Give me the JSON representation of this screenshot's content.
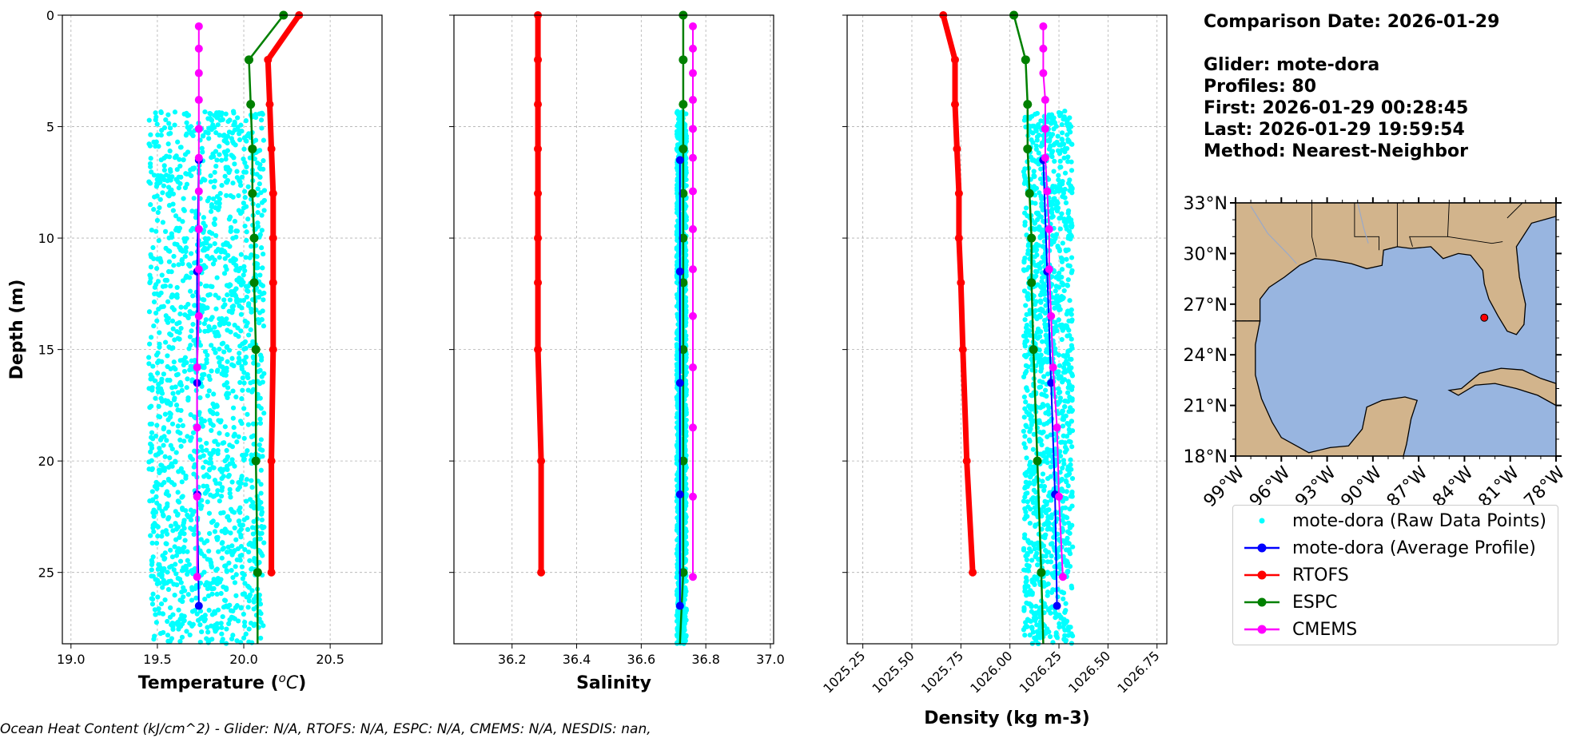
{
  "info": {
    "comparison_date": "Comparison Date: 2026-01-29",
    "glider": "Glider: mote-dora",
    "profiles": "Profiles: 80",
    "first": "First: 2026-01-29 00:28:45",
    "last": "Last: 2026-01-29 19:59:54",
    "method": "Method: Nearest-Neighbor"
  },
  "footer_text": "Ocean Heat Content (kJ/cm^2) - Glider: N/A,  RTOFS: N/A,  ESPC: N/A,  CMEMS: N/A,  NESDIS: nan,",
  "legend": [
    {
      "label": "mote-dora (Raw Data Points)",
      "color": "#00ffff",
      "style": "dot"
    },
    {
      "label": "mote-dora (Average Profile)",
      "color": "#0000ff",
      "style": "line-marker"
    },
    {
      "label": "RTOFS",
      "color": "#ff0000",
      "style": "line-marker"
    },
    {
      "label": "ESPC",
      "color": "#008000",
      "style": "line-marker"
    },
    {
      "label": "CMEMS",
      "color": "#ff00ff",
      "style": "line-marker"
    }
  ],
  "colors": {
    "raw": "#00ffff",
    "glider": "#0000ff",
    "rtofs": "#ff0000",
    "espc": "#008000",
    "cmems": "#ff00ff",
    "land": "#d2b48c",
    "ocean": "#98b5e0"
  },
  "chart_data": [
    {
      "type": "line",
      "title": "",
      "xlabel": "Temperature (°C)",
      "ylabel": "Depth (m)",
      "xlim": [
        18.95,
        20.8
      ],
      "ylim": [
        28.2,
        0
      ],
      "xticks": [
        "19.0",
        "19.5",
        "20.0",
        "20.5"
      ],
      "xtick_values": [
        19.0,
        19.5,
        20.0,
        20.5
      ],
      "yticks": [
        "0",
        "5",
        "10",
        "15",
        "20",
        "25"
      ],
      "ytick_values": [
        0,
        5,
        10,
        15,
        20,
        25
      ],
      "raw_range": {
        "x": [
          19.45,
          20.12
        ],
        "depth": [
          4.3,
          28.2
        ]
      },
      "series": [
        {
          "name": "mote-dora (Average Profile)",
          "key": "glider",
          "depth": [
            6.5,
            11.5,
            16.5,
            21.5,
            26.5
          ],
          "values": [
            19.74,
            19.73,
            19.73,
            19.73,
            19.74
          ]
        },
        {
          "name": "RTOFS",
          "key": "rtofs",
          "depth": [
            0,
            2,
            4,
            6,
            8,
            10,
            12,
            15,
            20,
            25
          ],
          "values": [
            20.32,
            20.14,
            20.15,
            20.16,
            20.17,
            20.17,
            20.17,
            20.17,
            20.16,
            20.16
          ]
        },
        {
          "name": "ESPC",
          "key": "espc",
          "depth": [
            0,
            2,
            4,
            6,
            8,
            10,
            12,
            15,
            20,
            25,
            28.2
          ],
          "values": [
            20.23,
            20.03,
            20.04,
            20.05,
            20.05,
            20.06,
            20.06,
            20.07,
            20.07,
            20.08,
            20.08
          ]
        },
        {
          "name": "CMEMS",
          "key": "cmems",
          "depth": [
            0.5,
            1.5,
            2.6,
            3.8,
            5.1,
            6.4,
            7.9,
            9.6,
            11.4,
            13.5,
            15.8,
            18.5,
            21.6,
            25.2
          ],
          "values": [
            19.74,
            19.74,
            19.74,
            19.74,
            19.74,
            19.74,
            19.74,
            19.74,
            19.74,
            19.74,
            19.73,
            19.73,
            19.73,
            19.73
          ]
        }
      ]
    },
    {
      "type": "line",
      "title": "",
      "xlabel": "Salinity",
      "ylabel": "",
      "xlim": [
        36.02,
        37.01
      ],
      "ylim": [
        28.2,
        0
      ],
      "xticks": [
        "36.2",
        "36.4",
        "36.6",
        "36.8",
        "37.0"
      ],
      "xtick_values": [
        36.2,
        36.4,
        36.6,
        36.8,
        37.0
      ],
      "yticks": [],
      "ytick_values": [
        0,
        5,
        10,
        15,
        20,
        25
      ],
      "raw_range": {
        "x": [
          36.71,
          36.74
        ],
        "depth": [
          4.3,
          28.2
        ]
      },
      "series": [
        {
          "name": "mote-dora (Average Profile)",
          "key": "glider",
          "depth": [
            6.5,
            11.5,
            16.5,
            21.5,
            26.5
          ],
          "values": [
            36.72,
            36.72,
            36.72,
            36.72,
            36.72
          ]
        },
        {
          "name": "RTOFS",
          "key": "rtofs",
          "depth": [
            0,
            2,
            4,
            6,
            8,
            10,
            12,
            15,
            20,
            25
          ],
          "values": [
            36.28,
            36.28,
            36.28,
            36.28,
            36.28,
            36.28,
            36.28,
            36.28,
            36.29,
            36.29
          ]
        },
        {
          "name": "ESPC",
          "key": "espc",
          "depth": [
            0,
            2,
            4,
            6,
            8,
            10,
            12,
            15,
            20,
            25,
            28.2
          ],
          "values": [
            36.73,
            36.73,
            36.73,
            36.73,
            36.73,
            36.73,
            36.73,
            36.73,
            36.73,
            36.73,
            36.72
          ]
        },
        {
          "name": "CMEMS",
          "key": "cmems",
          "depth": [
            0.5,
            1.5,
            2.6,
            3.8,
            5.1,
            6.4,
            7.9,
            9.6,
            11.4,
            13.5,
            15.8,
            18.5,
            21.6,
            25.2
          ],
          "values": [
            36.76,
            36.76,
            36.76,
            36.76,
            36.76,
            36.76,
            36.76,
            36.76,
            36.76,
            36.76,
            36.76,
            36.76,
            36.76,
            36.76
          ]
        }
      ]
    },
    {
      "type": "line",
      "title": "",
      "xlabel": "Density (kg m-3)",
      "ylabel": "",
      "xlim": [
        1025.17,
        1026.8
      ],
      "ylim": [
        28.2,
        0
      ],
      "xticks": [
        "1025.25",
        "1025.50",
        "1025.75",
        "1026.00",
        "1026.25",
        "1026.50",
        "1026.75"
      ],
      "xtick_values": [
        1025.25,
        1025.5,
        1025.75,
        1026.0,
        1026.25,
        1026.5,
        1026.75
      ],
      "yticks": [],
      "ytick_values": [
        0,
        5,
        10,
        15,
        20,
        25
      ],
      "raw_range": {
        "x": [
          1026.07,
          1026.32
        ],
        "depth": [
          4.3,
          28.2
        ]
      },
      "series": [
        {
          "name": "mote-dora (Average Profile)",
          "key": "glider",
          "depth": [
            6.5,
            11.5,
            16.5,
            21.5,
            26.5
          ],
          "values": [
            1026.17,
            1026.19,
            1026.21,
            1026.23,
            1026.24
          ]
        },
        {
          "name": "RTOFS",
          "key": "rtofs",
          "depth": [
            0,
            2,
            4,
            6,
            8,
            10,
            12,
            15,
            20,
            25
          ],
          "values": [
            1025.66,
            1025.72,
            1025.72,
            1025.73,
            1025.74,
            1025.74,
            1025.75,
            1025.76,
            1025.78,
            1025.81
          ]
        },
        {
          "name": "ESPC",
          "key": "espc",
          "depth": [
            0,
            2,
            4,
            6,
            8,
            10,
            12,
            15,
            20,
            25,
            28.2
          ],
          "values": [
            1026.02,
            1026.08,
            1026.09,
            1026.09,
            1026.1,
            1026.11,
            1026.11,
            1026.12,
            1026.14,
            1026.16,
            1026.17
          ]
        },
        {
          "name": "CMEMS",
          "key": "cmems",
          "depth": [
            0.5,
            1.5,
            2.6,
            3.8,
            5.1,
            6.4,
            7.9,
            9.6,
            11.4,
            13.5,
            15.8,
            18.5,
            21.6,
            25.2
          ],
          "values": [
            1026.17,
            1026.17,
            1026.17,
            1026.18,
            1026.18,
            1026.18,
            1026.19,
            1026.2,
            1026.2,
            1026.21,
            1026.22,
            1026.24,
            1026.25,
            1026.27
          ]
        }
      ]
    }
  ],
  "map": {
    "lon_range": [
      -99,
      -78
    ],
    "lat_range": [
      18,
      33
    ],
    "lon_ticks": [
      "99°W",
      "96°W",
      "93°W",
      "90°W",
      "87°W",
      "84°W",
      "81°W",
      "78°W"
    ],
    "lon_tick_values": [
      -99,
      -96,
      -93,
      -90,
      -87,
      -84,
      -81,
      -78
    ],
    "lat_ticks": [
      "33°N",
      "30°N",
      "27°N",
      "24°N",
      "21°N",
      "18°N"
    ],
    "lat_tick_values": [
      33,
      30,
      27,
      24,
      21,
      18
    ],
    "glider_location": {
      "lon": -82.7,
      "lat": 26.2
    }
  }
}
